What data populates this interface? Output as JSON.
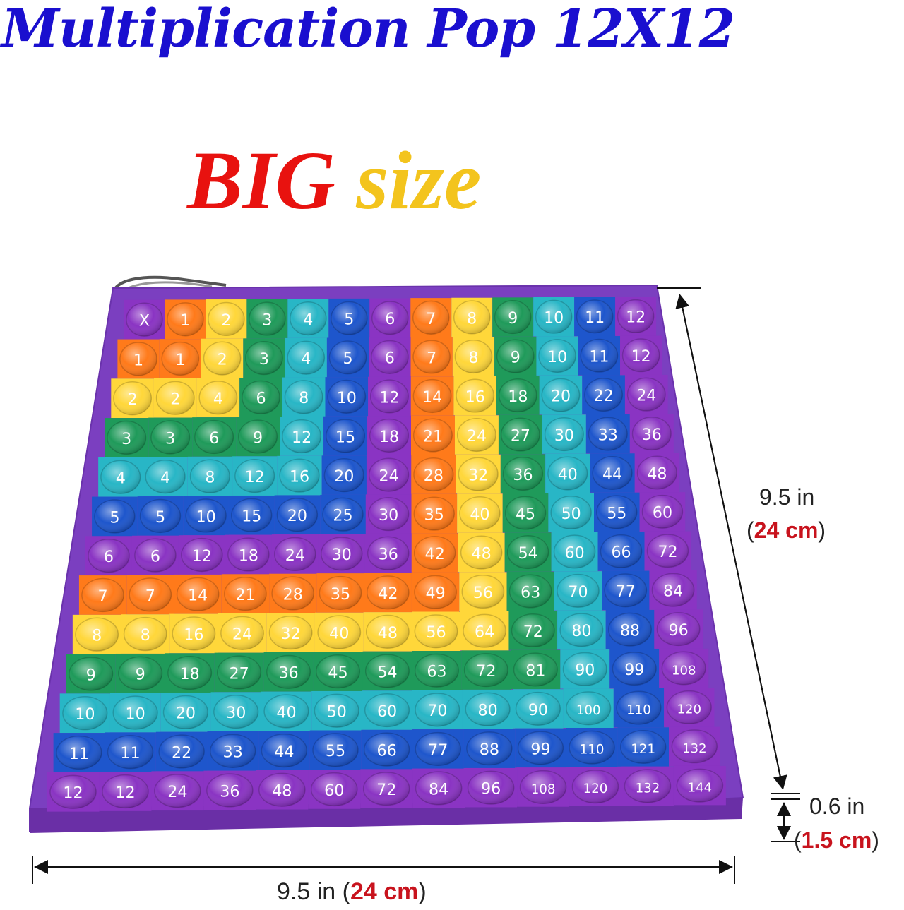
{
  "title": "Multiplication Pop 12X12",
  "subtitle": {
    "word1": "BIG",
    "word2": "size"
  },
  "board": {
    "corner": "X",
    "size": 12,
    "column_colors": [
      "#8a34c3",
      "#ff7a1a",
      "#ffd73a",
      "#1f9a5a",
      "#28b6c6",
      "#1e56cc",
      "#8a34c3",
      "#ff7a1a",
      "#ffd73a",
      "#1f9a5a",
      "#28b6c6",
      "#1e56cc",
      "#8a34c3"
    ],
    "row_colors": [
      "#8a34c3",
      "#ff7a1a",
      "#ffd73a",
      "#1f9a5a",
      "#28b6c6",
      "#1e56cc",
      "#8a34c3",
      "#ff7a1a",
      "#ffd73a",
      "#1f9a5a",
      "#28b6c6",
      "#1e56cc",
      "#8a34c3"
    ],
    "frame_color": "#7b3fc0"
  },
  "dimensions": {
    "height": {
      "in": "9.5 in",
      "cm_open": "(",
      "cm": "24 cm",
      "cm_close": ")"
    },
    "thickness": {
      "in": "0.6 in",
      "cm_open": "(",
      "cm": "1.5 cm",
      "cm_close": ")"
    },
    "width": {
      "in": "9.5 in",
      "cm_open": "(",
      "cm": "24 cm",
      "cm_close": ")"
    }
  }
}
